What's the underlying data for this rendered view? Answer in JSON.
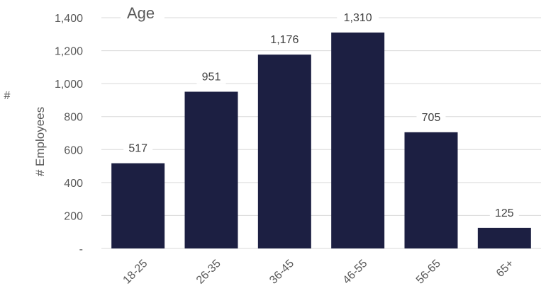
{
  "chart_data": {
    "type": "bar",
    "title": "Age",
    "xlabel": "",
    "ylabel": "# Employees",
    "categories": [
      "18-25",
      "26-35",
      "36-45",
      "46-55",
      "56-65",
      "65+"
    ],
    "values": [
      517,
      951,
      1176,
      1310,
      705,
      125
    ],
    "data_labels": [
      "517",
      "951",
      "1,176",
      "1,310",
      "705",
      "125"
    ],
    "ylim": [
      0,
      1400
    ],
    "yticks": [
      {
        "value": 0,
        "label": "-"
      },
      {
        "value": 200,
        "label": "200"
      },
      {
        "value": 400,
        "label": "400"
      },
      {
        "value": 600,
        "label": "600"
      },
      {
        "value": 800,
        "label": "800"
      },
      {
        "value": 1000,
        "label": "1,000"
      },
      {
        "value": 1200,
        "label": "1,200"
      },
      {
        "value": 1400,
        "label": "1,400"
      }
    ],
    "grid": true,
    "bar_color": "#1c1f42",
    "grid_color": "#d9d9d9"
  },
  "stray_label": "#"
}
